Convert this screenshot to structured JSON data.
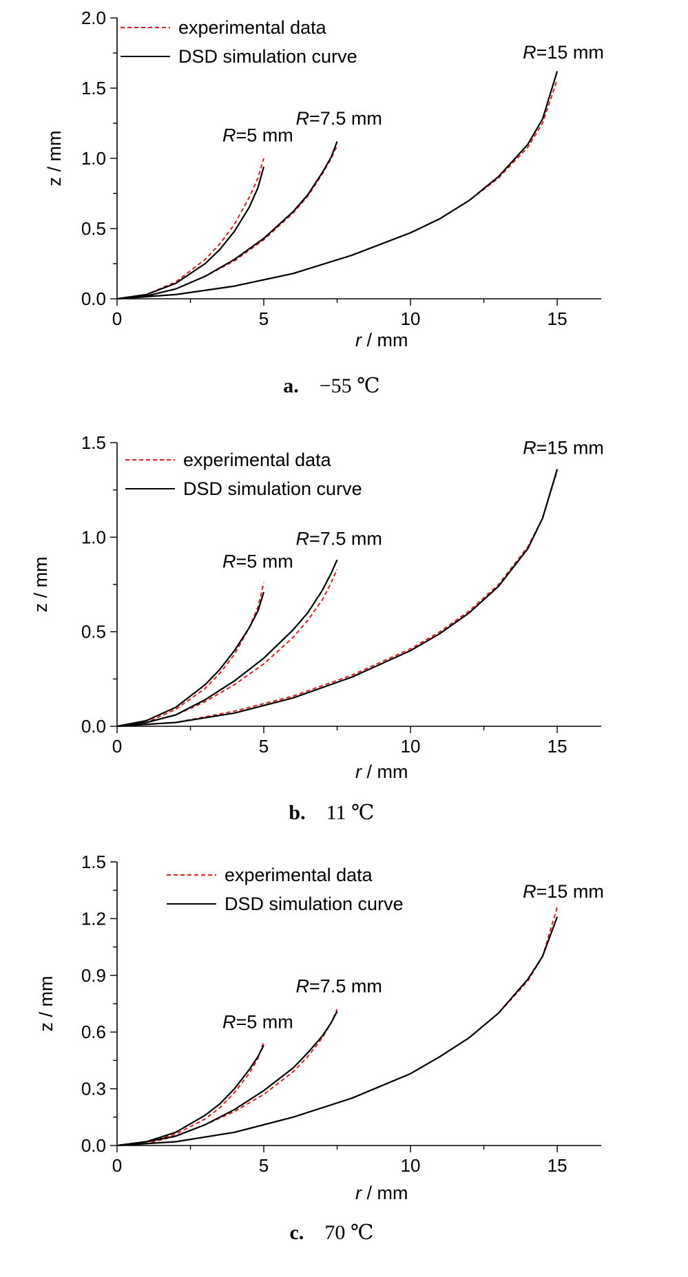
{
  "chart_data": [
    {
      "type": "line",
      "panel": "a",
      "caption": {
        "label": "a.",
        "text": "−55 ℃"
      },
      "xlabel": {
        "italic": "r",
        "rest": " / mm"
      },
      "ylabel": "z / mm",
      "xlim": [
        0,
        16.5
      ],
      "ylim": [
        0,
        2.0
      ],
      "xticks": [
        0,
        5,
        10,
        15
      ],
      "xtick_labels": [
        "0",
        "5",
        "10",
        "15"
      ],
      "yticks": [
        0,
        0.5,
        1.0,
        1.5,
        2.0
      ],
      "ytick_labels": [
        "0.0",
        "0.5",
        "1.0",
        "1.5",
        "2.0"
      ],
      "legend": {
        "position": "top-left",
        "entries": [
          {
            "label": "experimental data",
            "style": "dashed",
            "color": "#d62020"
          },
          {
            "label": "DSD simulation curve",
            "style": "solid",
            "color": "#000000"
          }
        ]
      },
      "annotations": [
        {
          "italic": "R",
          "rest": "=5 mm",
          "x": 5,
          "y": 1.12
        },
        {
          "italic": "R",
          "rest": "=7.5 mm",
          "x": 7.5,
          "y": 1.24
        },
        {
          "italic": "R",
          "rest": "=15 mm",
          "x": 15,
          "y": 1.71
        }
      ],
      "series": [
        {
          "name": "experimental data",
          "style": "dashed",
          "color": "#d62020",
          "group": "R=5 mm",
          "x": [
            0,
            1,
            2,
            3,
            3.5,
            4,
            4.5,
            4.8,
            5.0
          ],
          "y": [
            0,
            0.03,
            0.12,
            0.28,
            0.39,
            0.53,
            0.72,
            0.86,
            1.0
          ]
        },
        {
          "name": "DSD simulation curve",
          "style": "solid",
          "color": "#000000",
          "group": "R=5 mm",
          "x": [
            0,
            1,
            2,
            3,
            3.5,
            4,
            4.5,
            4.8,
            5.0
          ],
          "y": [
            0,
            0.03,
            0.11,
            0.25,
            0.35,
            0.48,
            0.65,
            0.79,
            0.94
          ]
        },
        {
          "name": "experimental data",
          "style": "dashed",
          "color": "#d62020",
          "group": "R=7.5 mm",
          "x": [
            0,
            1,
            2,
            3,
            4,
            5,
            6,
            6.5,
            7,
            7.3,
            7.5
          ],
          "y": [
            0,
            0.02,
            0.07,
            0.16,
            0.27,
            0.42,
            0.61,
            0.73,
            0.89,
            1.0,
            1.09
          ]
        },
        {
          "name": "DSD simulation curve",
          "style": "solid",
          "color": "#000000",
          "group": "R=7.5 mm",
          "x": [
            0,
            1,
            2,
            3,
            4,
            5,
            6,
            6.5,
            7,
            7.3,
            7.5
          ],
          "y": [
            0,
            0.02,
            0.07,
            0.16,
            0.28,
            0.43,
            0.62,
            0.74,
            0.9,
            1.01,
            1.12
          ]
        },
        {
          "name": "experimental data",
          "style": "dashed",
          "color": "#d62020",
          "group": "R=15 mm",
          "x": [
            0,
            2,
            4,
            6,
            8,
            10,
            11,
            12,
            13,
            14,
            14.5,
            15
          ],
          "y": [
            0,
            0.03,
            0.09,
            0.18,
            0.31,
            0.47,
            0.57,
            0.7,
            0.86,
            1.08,
            1.25,
            1.56
          ]
        },
        {
          "name": "DSD simulation curve",
          "style": "solid",
          "color": "#000000",
          "group": "R=15 mm",
          "x": [
            0,
            2,
            4,
            6,
            8,
            10,
            11,
            12,
            13,
            14,
            14.5,
            15
          ],
          "y": [
            0,
            0.03,
            0.09,
            0.18,
            0.31,
            0.47,
            0.57,
            0.7,
            0.87,
            1.1,
            1.28,
            1.62
          ]
        }
      ]
    },
    {
      "type": "line",
      "panel": "b",
      "caption": {
        "label": "b.",
        "text": "11 ℃"
      },
      "xlabel": {
        "italic": "r",
        "rest": " / mm"
      },
      "ylabel": "z / mm",
      "xlim": [
        0,
        16.5
      ],
      "ylim": [
        0,
        1.5
      ],
      "xticks": [
        0,
        5,
        10,
        15
      ],
      "xtick_labels": [
        "0",
        "5",
        "10",
        "15"
      ],
      "yticks": [
        0,
        0.5,
        1.0,
        1.5
      ],
      "ytick_labels": [
        "0.0",
        "0.5",
        "1.0",
        "1.5"
      ],
      "legend": {
        "position": "top-left",
        "entries": [
          {
            "label": "experimental data",
            "style": "dashed",
            "color": "#d62020"
          },
          {
            "label": "DSD simulation curve",
            "style": "solid",
            "color": "#000000"
          }
        ]
      },
      "annotations": [
        {
          "italic": "R",
          "rest": "=5 mm",
          "x": 5,
          "y": 0.84
        },
        {
          "italic": "R",
          "rest": "=7.5 mm",
          "x": 7.5,
          "y": 0.96
        },
        {
          "italic": "R",
          "rest": "=15 mm",
          "x": 15,
          "y": 1.44
        }
      ],
      "series": [
        {
          "name": "experimental data",
          "style": "dashed",
          "color": "#d62020",
          "group": "R=5 mm",
          "x": [
            0,
            1,
            2,
            3,
            3.5,
            4,
            4.5,
            4.8,
            5.0
          ],
          "y": [
            0,
            0.02,
            0.09,
            0.2,
            0.28,
            0.38,
            0.52,
            0.63,
            0.76
          ]
        },
        {
          "name": "DSD simulation curve",
          "style": "solid",
          "color": "#000000",
          "group": "R=5 mm",
          "x": [
            0,
            1,
            2,
            3,
            3.5,
            4,
            4.5,
            4.8,
            5.0
          ],
          "y": [
            0,
            0.03,
            0.1,
            0.22,
            0.3,
            0.4,
            0.52,
            0.61,
            0.71
          ]
        },
        {
          "name": "experimental data",
          "style": "dashed",
          "color": "#d62020",
          "group": "R=7.5 mm",
          "x": [
            0,
            1,
            2,
            3,
            4,
            5,
            6,
            6.5,
            7,
            7.3,
            7.5
          ],
          "y": [
            0,
            0.02,
            0.06,
            0.13,
            0.22,
            0.33,
            0.47,
            0.56,
            0.67,
            0.76,
            0.83
          ]
        },
        {
          "name": "DSD simulation curve",
          "style": "solid",
          "color": "#000000",
          "group": "R=7.5 mm",
          "x": [
            0,
            1,
            2,
            3,
            4,
            5,
            6,
            6.5,
            7,
            7.3,
            7.5
          ],
          "y": [
            0,
            0.02,
            0.06,
            0.14,
            0.24,
            0.36,
            0.51,
            0.6,
            0.72,
            0.81,
            0.88
          ]
        },
        {
          "name": "experimental data",
          "style": "dashed",
          "color": "#d62020",
          "group": "R=15 mm",
          "x": [
            0,
            2,
            4,
            6,
            8,
            10,
            11,
            12,
            13,
            14,
            14.5,
            15
          ],
          "y": [
            0,
            0.02,
            0.08,
            0.16,
            0.27,
            0.41,
            0.5,
            0.61,
            0.75,
            0.95,
            1.1,
            1.35
          ]
        },
        {
          "name": "DSD simulation curve",
          "style": "solid",
          "color": "#000000",
          "group": "R=15 mm",
          "x": [
            0,
            2,
            4,
            6,
            8,
            10,
            11,
            12,
            13,
            14,
            14.5,
            15
          ],
          "y": [
            0,
            0.02,
            0.07,
            0.15,
            0.26,
            0.4,
            0.49,
            0.6,
            0.74,
            0.94,
            1.1,
            1.36
          ]
        }
      ]
    },
    {
      "type": "line",
      "panel": "c",
      "caption": {
        "label": "c.",
        "text": "70 ℃"
      },
      "xlabel": {
        "italic": "r",
        "rest": " / mm"
      },
      "ylabel": "z / mm",
      "xlim": [
        0,
        16.5
      ],
      "ylim": [
        0,
        1.5
      ],
      "xticks": [
        0,
        5,
        10,
        15
      ],
      "xtick_labels": [
        "0",
        "5",
        "10",
        "15"
      ],
      "yticks": [
        0,
        0.3,
        0.6,
        0.9,
        1.2,
        1.5
      ],
      "ytick_labels": [
        "0.0",
        "0.3",
        "0.6",
        "0.9",
        "1.2",
        "1.5"
      ],
      "legend": {
        "position": "top-left",
        "entries": [
          {
            "label": "experimental data",
            "style": "dashed",
            "color": "#d62020"
          },
          {
            "label": "DSD simulation curve",
            "style": "solid",
            "color": "#000000"
          }
        ]
      },
      "annotations": [
        {
          "italic": "R",
          "rest": "=5 mm",
          "x": 5,
          "y": 0.62
        },
        {
          "italic": "R",
          "rest": "=7.5 mm",
          "x": 7.5,
          "y": 0.81
        },
        {
          "italic": "R",
          "rest": "=15 mm",
          "x": 15,
          "y": 1.31
        }
      ],
      "series": [
        {
          "name": "experimental data",
          "style": "dashed",
          "color": "#d62020",
          "group": "R=5 mm",
          "x": [
            0,
            1,
            2,
            3,
            3.5,
            4,
            4.5,
            4.8,
            5.0
          ],
          "y": [
            0,
            0.02,
            0.06,
            0.14,
            0.2,
            0.28,
            0.38,
            0.46,
            0.55
          ]
        },
        {
          "name": "DSD simulation curve",
          "style": "solid",
          "color": "#000000",
          "group": "R=5 mm",
          "x": [
            0,
            1,
            2,
            3,
            3.5,
            4,
            4.5,
            4.8,
            5.0
          ],
          "y": [
            0,
            0.02,
            0.07,
            0.16,
            0.22,
            0.3,
            0.4,
            0.47,
            0.53
          ]
        },
        {
          "name": "experimental data",
          "style": "dashed",
          "color": "#d62020",
          "group": "R=7.5 mm",
          "x": [
            0,
            1,
            2,
            3,
            4,
            5,
            6,
            6.5,
            7,
            7.3,
            7.5
          ],
          "y": [
            0,
            0.01,
            0.05,
            0.11,
            0.18,
            0.27,
            0.39,
            0.47,
            0.57,
            0.65,
            0.72
          ]
        },
        {
          "name": "DSD simulation curve",
          "style": "solid",
          "color": "#000000",
          "group": "R=7.5 mm",
          "x": [
            0,
            1,
            2,
            3,
            4,
            5,
            6,
            6.5,
            7,
            7.3,
            7.5
          ],
          "y": [
            0,
            0.02,
            0.05,
            0.11,
            0.19,
            0.29,
            0.41,
            0.49,
            0.58,
            0.65,
            0.71
          ]
        },
        {
          "name": "experimental data",
          "style": "dashed",
          "color": "#d62020",
          "group": "R=15 mm",
          "x": [
            0,
            2,
            4,
            6,
            8,
            10,
            11,
            12,
            13,
            14,
            14.5,
            15
          ],
          "y": [
            0,
            0.02,
            0.07,
            0.15,
            0.25,
            0.38,
            0.47,
            0.57,
            0.7,
            0.87,
            1.0,
            1.26
          ]
        },
        {
          "name": "DSD simulation curve",
          "style": "solid",
          "color": "#000000",
          "group": "R=15 mm",
          "x": [
            0,
            2,
            4,
            6,
            8,
            10,
            11,
            12,
            13,
            14,
            14.5,
            15
          ],
          "y": [
            0,
            0.02,
            0.07,
            0.15,
            0.25,
            0.38,
            0.47,
            0.57,
            0.7,
            0.88,
            1.0,
            1.21
          ]
        }
      ]
    }
  ]
}
